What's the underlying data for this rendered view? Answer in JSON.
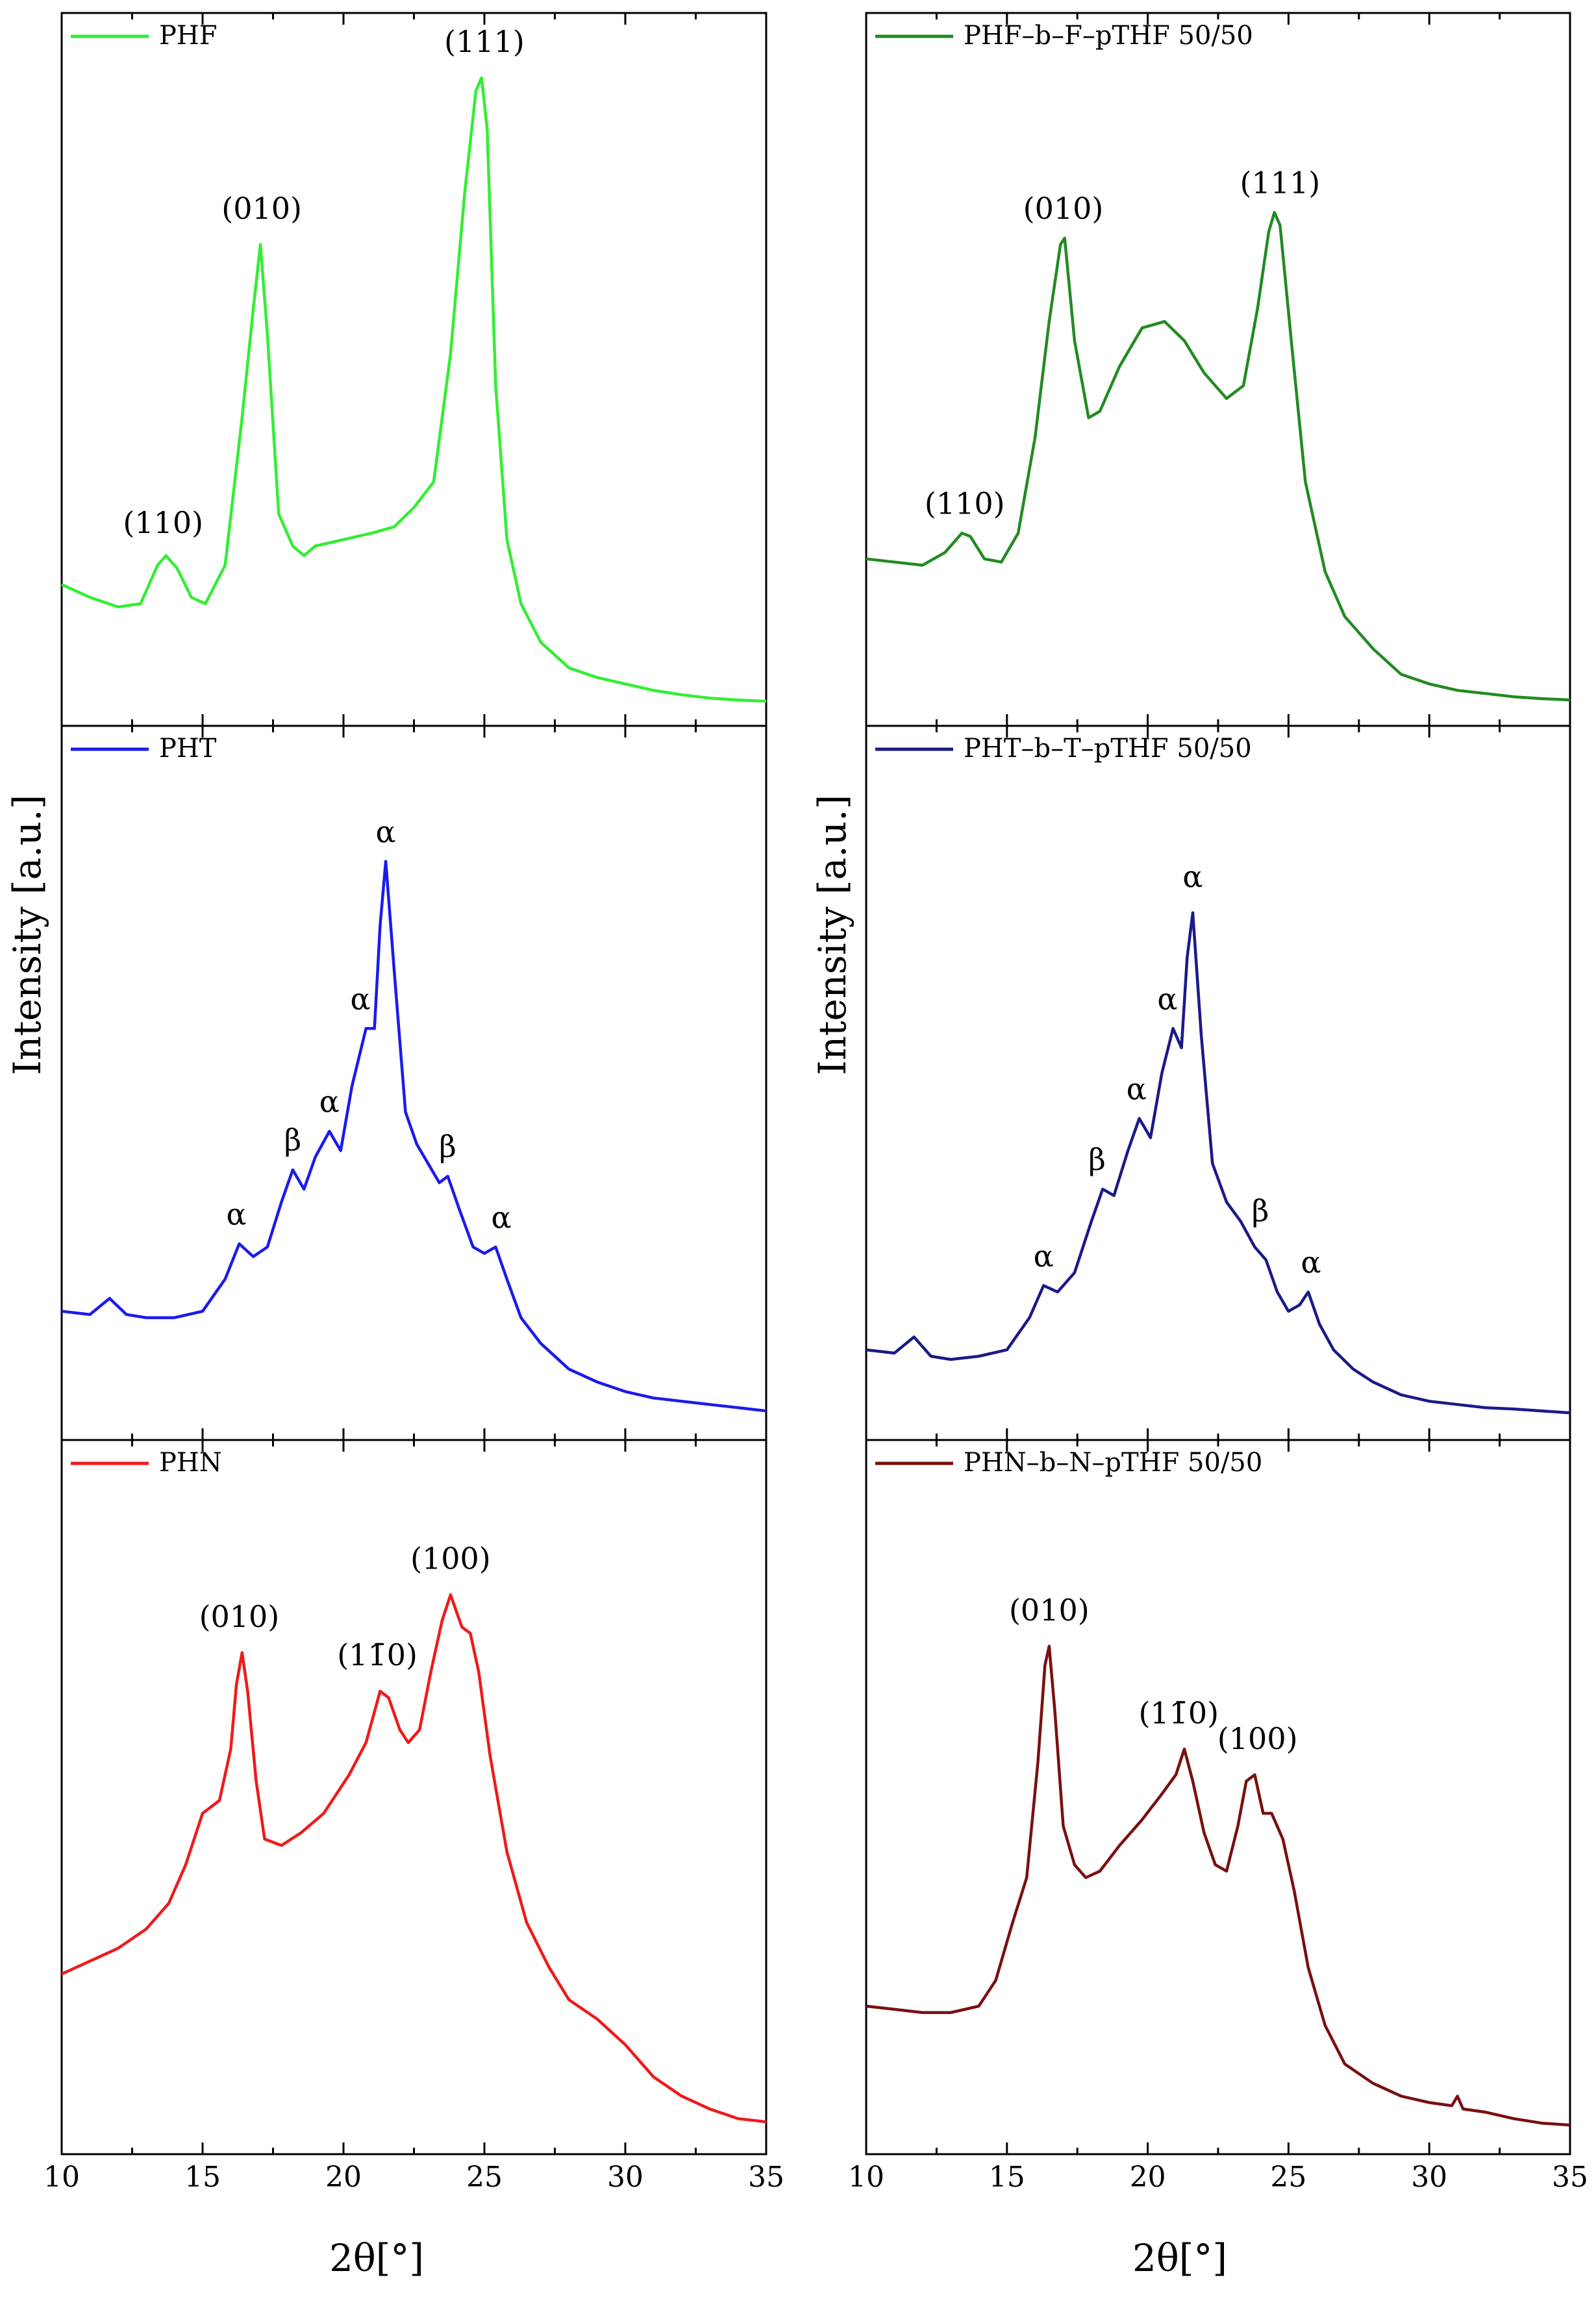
{
  "figure": {
    "ylabel": "Intensity [a.u.]",
    "xlabel": "2θ[°]"
  },
  "chart_data": [
    {
      "type": "line",
      "col": 0,
      "row": 0,
      "legend": "PHF",
      "color": "#33ee33",
      "xlim": [
        10,
        35
      ],
      "ylim": [
        0,
        100
      ],
      "xticks": [
        10,
        15,
        20,
        25,
        30,
        35
      ],
      "series": [
        {
          "name": "PHF",
          "x": [
            10,
            11,
            12,
            12.8,
            13.4,
            13.7,
            14.1,
            14.6,
            15.1,
            15.8,
            16.4,
            16.8,
            17.05,
            17.3,
            17.7,
            18.2,
            18.6,
            19,
            20,
            21,
            21.8,
            22.5,
            23.2,
            23.8,
            24.3,
            24.7,
            24.9,
            25.1,
            25.4,
            25.8,
            26.3,
            27,
            28,
            29,
            30,
            31,
            32,
            33,
            34,
            35
          ],
          "y": [
            19,
            17,
            15.5,
            16,
            22,
            23.5,
            21.5,
            17,
            16,
            22,
            45,
            62,
            72,
            58,
            30,
            25,
            23.5,
            25,
            26,
            27,
            28,
            31,
            35,
            55,
            80,
            96,
            98,
            90,
            50,
            26,
            16,
            10,
            6,
            4.5,
            3.5,
            2.5,
            1.8,
            1.3,
            1.0,
            0.8
          ]
        }
      ],
      "annotations": [
        {
          "text": "(110)",
          "x": 13.6,
          "y": 26
        },
        {
          "text": "(010)",
          "x": 17.1,
          "y": 75
        },
        {
          "text": "(111)",
          "x": 25.0,
          "y": 101
        }
      ]
    },
    {
      "type": "line",
      "col": 1,
      "row": 0,
      "legend": "PHF–b–F–pTHF 50/50",
      "color": "#228b22",
      "xlim": [
        10,
        35
      ],
      "ylim": [
        0,
        100
      ],
      "xticks": [
        10,
        15,
        20,
        25,
        30,
        35
      ],
      "series": [
        {
          "name": "PHF–b–F–pTHF 50/50",
          "x": [
            10,
            11,
            12,
            12.8,
            13.4,
            13.7,
            14.2,
            14.8,
            15.4,
            16,
            16.5,
            16.9,
            17.05,
            17.4,
            17.9,
            18.3,
            19,
            19.8,
            20.6,
            21.3,
            22,
            22.8,
            23.4,
            23.9,
            24.3,
            24.5,
            24.7,
            25.1,
            25.6,
            26.3,
            27,
            28,
            29,
            30,
            31,
            32,
            33,
            34,
            35
          ],
          "y": [
            23,
            22.5,
            22,
            24,
            27,
            26.5,
            23,
            22.5,
            27,
            42,
            60,
            72,
            73,
            57,
            45,
            46,
            53,
            59,
            60,
            57,
            52,
            48,
            50,
            62,
            74,
            77,
            75,
            57,
            35,
            21,
            14,
            9,
            5,
            3.5,
            2.5,
            2,
            1.5,
            1.2,
            1.0
          ]
        }
      ],
      "annotations": [
        {
          "text": "(110)",
          "x": 13.5,
          "y": 29
        },
        {
          "text": "(010)",
          "x": 17.0,
          "y": 75
        },
        {
          "text": "(111)",
          "x": 24.7,
          "y": 79
        }
      ]
    },
    {
      "type": "line",
      "col": 0,
      "row": 1,
      "legend": "PHT",
      "color": "#1a1aee",
      "xlim": [
        10,
        35
      ],
      "ylim": [
        0,
        100
      ],
      "xticks": [
        10,
        15,
        20,
        25,
        30,
        35
      ],
      "series": [
        {
          "name": "PHT",
          "x": [
            10,
            11,
            11.7,
            12.3,
            13,
            14,
            15,
            15.8,
            16.3,
            16.8,
            17.3,
            17.8,
            18.2,
            18.6,
            19,
            19.5,
            19.9,
            20.3,
            20.8,
            21.1,
            21.3,
            21.5,
            21.8,
            22.2,
            22.6,
            23,
            23.4,
            23.7,
            24.1,
            24.6,
            25,
            25.4,
            25.8,
            26.3,
            27,
            28,
            29,
            30,
            31,
            32,
            33,
            34,
            35
          ],
          "y": [
            17,
            16.5,
            19,
            16.5,
            16,
            16,
            17,
            22,
            27.5,
            25.5,
            27,
            34,
            39,
            36,
            41,
            45,
            42,
            52,
            61,
            61,
            77,
            87,
            70,
            48,
            43,
            40,
            37,
            38,
            33,
            27,
            26,
            27,
            22,
            16,
            12,
            8,
            6,
            4.5,
            3.5,
            3,
            2.5,
            2,
            1.5
          ]
        }
      ],
      "annotations": [
        {
          "text": "α",
          "x": 16.2,
          "y": 29.5
        },
        {
          "text": "β",
          "x": 18.2,
          "y": 41
        },
        {
          "text": "α",
          "x": 19.5,
          "y": 47
        },
        {
          "text": "α",
          "x": 20.6,
          "y": 63
        },
        {
          "text": "α",
          "x": 21.5,
          "y": 89
        },
        {
          "text": "β",
          "x": 23.7,
          "y": 40
        },
        {
          "text": "α",
          "x": 25.6,
          "y": 29
        }
      ]
    },
    {
      "type": "line",
      "col": 1,
      "row": 1,
      "legend": "PHT–b–T–pTHF 50/50",
      "color": "#1a1a88",
      "xlim": [
        10,
        35
      ],
      "ylim": [
        0,
        100
      ],
      "xticks": [
        10,
        15,
        20,
        25,
        30,
        35
      ],
      "series": [
        {
          "name": "PHT–b–T–pTHF 50/50",
          "x": [
            10,
            11,
            11.7,
            12.3,
            13,
            14,
            15,
            15.8,
            16.3,
            16.8,
            17.4,
            18,
            18.4,
            18.8,
            19.3,
            19.7,
            20.1,
            20.5,
            20.9,
            21.2,
            21.4,
            21.6,
            21.9,
            22.3,
            22.8,
            23.3,
            23.8,
            24.2,
            24.6,
            25,
            25.4,
            25.7,
            26.1,
            26.6,
            27.3,
            28,
            29,
            30,
            31,
            32,
            33,
            34,
            35
          ],
          "y": [
            11,
            10.5,
            13,
            10,
            9.5,
            10,
            11,
            16,
            21,
            20,
            23,
            31,
            36,
            35,
            42,
            47,
            44,
            54,
            61,
            58,
            72,
            79,
            60,
            40,
            34,
            31,
            27,
            25,
            20,
            17,
            18,
            20,
            15,
            11,
            8,
            6,
            4,
            3,
            2.5,
            2,
            1.8,
            1.5,
            1.2
          ]
        }
      ],
      "annotations": [
        {
          "text": "α",
          "x": 16.3,
          "y": 23
        },
        {
          "text": "β",
          "x": 18.2,
          "y": 38
        },
        {
          "text": "α",
          "x": 19.6,
          "y": 49
        },
        {
          "text": "α",
          "x": 20.7,
          "y": 63
        },
        {
          "text": "α",
          "x": 21.6,
          "y": 82
        },
        {
          "text": "β",
          "x": 24.0,
          "y": 30
        },
        {
          "text": "α",
          "x": 25.8,
          "y": 22
        }
      ]
    },
    {
      "type": "line",
      "col": 0,
      "row": 2,
      "legend": "PHN",
      "color": "#ee1a1a",
      "xlim": [
        10,
        35
      ],
      "ylim": [
        0,
        100
      ],
      "xticks": [
        10,
        15,
        20,
        25,
        30,
        35
      ],
      "series": [
        {
          "name": "PHN",
          "x": [
            10,
            11,
            12,
            13,
            13.8,
            14.4,
            15,
            15.6,
            16,
            16.2,
            16.4,
            16.6,
            16.9,
            17.2,
            17.8,
            18.5,
            19.3,
            20.2,
            20.8,
            21.3,
            21.6,
            22,
            22.3,
            22.7,
            23.1,
            23.5,
            23.8,
            24.2,
            24.5,
            24.8,
            25.2,
            25.8,
            26.5,
            27.3,
            28,
            29,
            30,
            31,
            32,
            33,
            34,
            35
          ],
          "y": [
            25,
            27,
            29,
            32,
            36,
            42,
            50,
            52,
            60,
            70,
            75,
            69,
            55,
            46,
            45,
            47,
            50,
            56,
            61,
            69,
            68,
            63,
            61,
            63,
            72,
            80,
            84,
            79,
            78,
            72,
            59,
            44,
            33,
            26,
            21,
            18,
            14,
            9,
            6,
            4,
            2.5,
            2
          ]
        }
      ],
      "annotations": [
        {
          "text": "(010)",
          "x": 16.3,
          "y": 78
        },
        {
          "text": "(11̄0)",
          "x": 21.2,
          "y": 72
        },
        {
          "text": "(100)",
          "x": 23.8,
          "y": 87
        }
      ]
    },
    {
      "type": "line",
      "col": 1,
      "row": 2,
      "legend": "PHN–b–N–pTHF 50/50",
      "color": "#7a0f0f",
      "xlim": [
        10,
        35
      ],
      "ylim": [
        0,
        100
      ],
      "xticks": [
        10,
        15,
        20,
        25,
        30,
        35
      ],
      "series": [
        {
          "name": "PHN–b–N–pTHF 50/50",
          "x": [
            10,
            11,
            12,
            13,
            14,
            14.6,
            15.2,
            15.7,
            16.1,
            16.35,
            16.5,
            16.7,
            17,
            17.4,
            17.8,
            18.3,
            19,
            19.8,
            20.5,
            21,
            21.3,
            21.6,
            22,
            22.4,
            22.8,
            23.2,
            23.5,
            23.8,
            24.1,
            24.4,
            24.8,
            25.2,
            25.7,
            26.3,
            27,
            28,
            29,
            30,
            30.8,
            31,
            31.2,
            32,
            33,
            34,
            35
          ],
          "y": [
            20,
            19.5,
            19,
            19,
            20,
            24,
            33,
            40,
            58,
            73,
            76,
            66,
            48,
            42,
            40,
            41,
            45,
            49,
            53,
            56,
            60,
            55,
            47,
            42,
            41,
            48,
            55,
            56,
            50,
            50,
            46,
            38,
            26,
            17,
            11,
            8,
            6,
            5,
            4.5,
            6,
            4,
            3.5,
            2.5,
            1.8,
            1.5
          ]
        }
      ],
      "annotations": [
        {
          "text": "(010)",
          "x": 16.5,
          "y": 79
        },
        {
          "text": "(11̄0)",
          "x": 21.1,
          "y": 63
        },
        {
          "text": "(100)",
          "x": 23.9,
          "y": 59
        }
      ]
    }
  ]
}
